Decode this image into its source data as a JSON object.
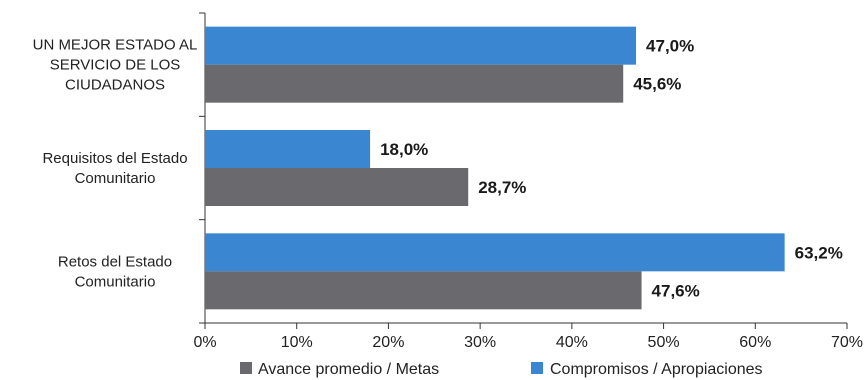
{
  "chart_data": {
    "type": "bar",
    "orientation": "horizontal",
    "categories": [
      [
        "UN MEJOR ESTADO AL",
        "SERVICIO DE LOS",
        "CIUDADANOS"
      ],
      [
        "Requisitos del Estado",
        "Comunitario"
      ],
      [
        "Retos del Estado",
        "Comunitario"
      ]
    ],
    "series": [
      {
        "name": "Compromisos / Apropiaciones",
        "color": "#3b86d1",
        "values": [
          47.0,
          18.0,
          63.2
        ],
        "labels": [
          "47,0%",
          "18,0%",
          "63,2%"
        ]
      },
      {
        "name": "Avance promedio / Metas",
        "color": "#6a6a6e",
        "values": [
          45.6,
          28.7,
          47.6
        ],
        "labels": [
          "45,6%",
          "28,7%",
          "47,6%"
        ]
      }
    ],
    "xlim": [
      0,
      70
    ],
    "xticks": [
      0,
      10,
      20,
      30,
      40,
      50,
      60,
      70
    ],
    "xtick_labels": [
      "0%",
      "10%",
      "20%",
      "30%",
      "40%",
      "50%",
      "60%",
      "70%"
    ],
    "legend": {
      "placement": "bottom",
      "order": [
        "Avance promedio / Metas",
        "Compromisos / Apropiaciones"
      ]
    },
    "grid": false
  }
}
